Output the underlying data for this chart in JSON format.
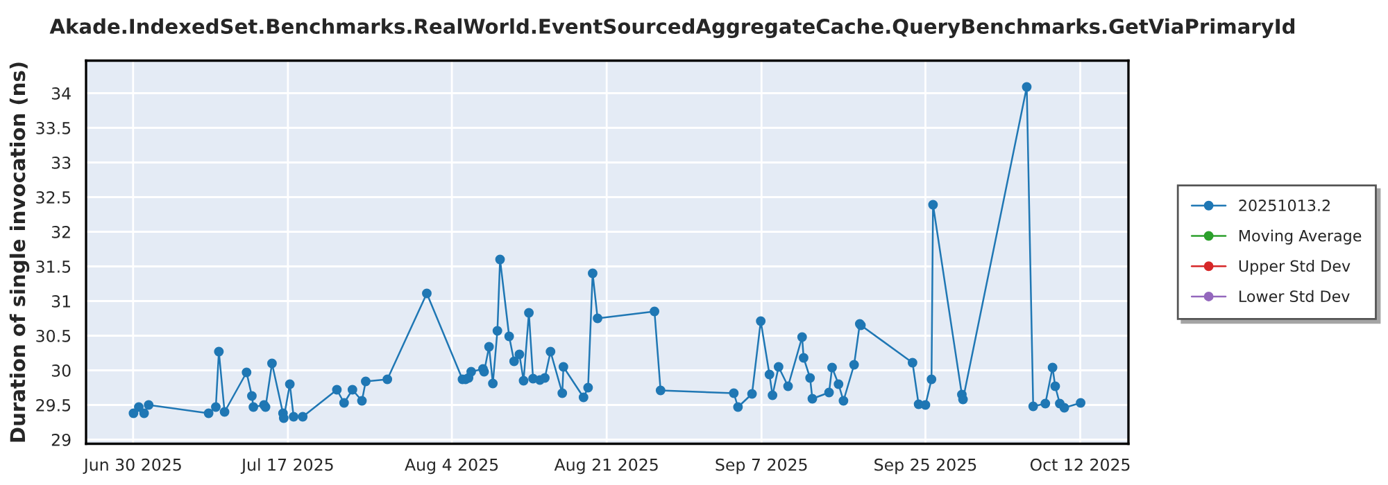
{
  "chart_data": {
    "type": "line",
    "title": "Akade.IndexedSet.Benchmarks.RealWorld.EventSourcedAggregateCache.QueryBenchmarks.GetViaPrimaryId",
    "ylabel": "Duration of single invocation (ns)",
    "x": [
      "2025-06-30T01:00",
      "2025-06-30T15:00",
      "2025-07-01T05:00",
      "2025-07-01T17:00",
      "2025-07-08T07:00",
      "2025-07-09T02:00",
      "2025-07-09T10:00",
      "2025-07-10T01:00",
      "2025-07-12T11:00",
      "2025-07-13T01:00",
      "2025-07-13T05:00",
      "2025-07-14T09:00",
      "2025-07-14T13:00",
      "2025-07-15T06:00",
      "2025-07-16T11:00",
      "2025-07-16T13:00",
      "2025-07-17T05:00",
      "2025-07-17T15:00",
      "2025-07-18T15:00",
      "2025-07-22T09:00",
      "2025-07-23T04:00",
      "2025-07-24T02:00",
      "2025-07-25T03:00",
      "2025-07-25T13:00",
      "2025-07-27T22:00",
      "2025-08-01T06:00",
      "2025-08-05T04:00",
      "2025-08-05T12:00",
      "2025-08-05T20:00",
      "2025-08-06T03:00",
      "2025-08-07T10:00",
      "2025-08-07T13:00",
      "2025-08-08T02:00",
      "2025-08-08T12:00",
      "2025-08-09T00:00",
      "2025-08-09T07:00",
      "2025-08-10T07:00",
      "2025-08-10T20:00",
      "2025-08-11T10:00",
      "2025-08-11T21:00",
      "2025-08-12T11:00",
      "2025-08-12T22:00",
      "2025-08-13T16:00",
      "2025-08-14T05:00",
      "2025-08-14T20:00",
      "2025-08-16T03:00",
      "2025-08-16T06:00",
      "2025-08-18T11:00",
      "2025-08-18T23:00",
      "2025-08-19T11:00",
      "2025-08-20T00:00",
      "2025-08-26T06:00",
      "2025-08-26T22:00",
      "2025-09-03T23:00",
      "2025-09-04T10:00",
      "2025-09-05T23:00",
      "2025-09-06T22:00",
      "2025-09-07T21:00",
      "2025-09-08T05:00",
      "2025-09-08T21:00",
      "2025-09-09T22:00",
      "2025-09-11T11:00",
      "2025-09-11T15:00",
      "2025-09-12T08:00",
      "2025-09-12T14:00",
      "2025-09-14T10:00",
      "2025-09-14T18:00",
      "2025-09-15T11:00",
      "2025-09-16T00:00",
      "2025-09-17T04:00",
      "2025-09-17T19:00",
      "2025-09-17T22:00",
      "2025-09-23T14:00",
      "2025-09-24T06:00",
      "2025-09-25T00:00",
      "2025-09-25T16:00",
      "2025-09-25T20:00",
      "2025-09-29T00:00",
      "2025-09-29T03:00",
      "2025-10-06T03:00",
      "2025-10-06T20:00",
      "2025-10-08T04:00",
      "2025-10-08T23:00",
      "2025-10-09T06:00",
      "2025-10-09T18:00",
      "2025-10-10T06:00",
      "2025-10-12T01:00"
    ],
    "series": [
      {
        "name": "20251013.2",
        "color": "#1f77b4",
        "values": [
          29.38,
          29.47,
          29.38,
          29.5,
          29.38,
          29.47,
          30.27,
          29.4,
          29.97,
          29.63,
          29.47,
          29.5,
          29.47,
          30.1,
          29.38,
          29.31,
          29.8,
          29.33,
          29.33,
          29.72,
          29.53,
          29.72,
          29.56,
          29.84,
          29.87,
          31.11,
          29.87,
          29.87,
          29.89,
          29.98,
          30.02,
          29.98,
          30.34,
          29.81,
          30.57,
          31.6,
          30.49,
          30.13,
          30.23,
          29.85,
          30.83,
          29.88,
          29.86,
          29.89,
          30.27,
          29.67,
          30.05,
          29.61,
          29.75,
          31.4,
          30.75,
          30.85,
          29.71,
          29.67,
          29.47,
          29.66,
          30.71,
          29.94,
          29.64,
          30.05,
          29.77,
          30.48,
          30.18,
          29.89,
          29.59,
          29.68,
          30.04,
          29.8,
          29.56,
          30.08,
          30.67,
          30.65,
          30.11,
          29.51,
          29.5,
          29.87,
          32.39,
          29.65,
          29.58,
          34.09,
          29.48,
          29.52,
          30.04,
          29.77,
          29.52,
          29.46,
          29.53
        ]
      },
      {
        "name": "Moving Average",
        "color": "#2ca02c",
        "values": [
          null,
          null,
          null,
          null,
          null,
          null,
          null,
          null,
          null,
          null,
          null,
          null,
          null,
          null,
          null,
          null,
          null,
          null,
          null,
          null,
          null,
          null,
          null,
          null,
          null,
          null,
          null,
          null,
          null,
          null,
          null,
          null,
          null,
          null,
          null,
          null,
          null,
          null,
          null,
          null,
          null,
          null,
          null,
          null,
          null,
          null,
          null,
          null,
          null,
          null,
          null,
          null,
          null,
          null,
          null,
          null,
          null,
          null,
          null,
          null,
          null,
          null,
          null,
          null,
          null,
          null,
          null,
          null,
          null,
          null,
          null,
          null,
          null,
          null,
          null,
          null,
          null,
          null,
          null,
          null,
          null,
          null,
          null,
          null,
          null,
          null,
          null
        ]
      },
      {
        "name": "Upper Std Dev",
        "color": "#d62728",
        "values": [
          null,
          null,
          null,
          null,
          null,
          null,
          null,
          null,
          null,
          null,
          null,
          null,
          null,
          null,
          null,
          null,
          null,
          null,
          null,
          null,
          null,
          null,
          null,
          null,
          null,
          null,
          null,
          null,
          null,
          null,
          null,
          null,
          null,
          null,
          null,
          null,
          null,
          null,
          null,
          null,
          null,
          null,
          null,
          null,
          null,
          null,
          null,
          null,
          null,
          null,
          null,
          null,
          null,
          null,
          null,
          null,
          null,
          null,
          null,
          null,
          null,
          null,
          null,
          null,
          null,
          null,
          null,
          null,
          null,
          null,
          null,
          null,
          null,
          null,
          null,
          null,
          null,
          null,
          null,
          null,
          null,
          null,
          null,
          null,
          null,
          null,
          null
        ]
      },
      {
        "name": "Lower Std Dev",
        "color": "#9467bd",
        "values": [
          null,
          null,
          null,
          null,
          null,
          null,
          null,
          null,
          null,
          null,
          null,
          null,
          null,
          null,
          null,
          null,
          null,
          null,
          null,
          null,
          null,
          null,
          null,
          null,
          null,
          null,
          null,
          null,
          null,
          null,
          null,
          null,
          null,
          null,
          null,
          null,
          null,
          null,
          null,
          null,
          null,
          null,
          null,
          null,
          null,
          null,
          null,
          null,
          null,
          null,
          null,
          null,
          null,
          null,
          null,
          null,
          null,
          null,
          null,
          null,
          null,
          null,
          null,
          null,
          null,
          null,
          null,
          null,
          null,
          null,
          null,
          null,
          null,
          null,
          null,
          null,
          null,
          null,
          null,
          null,
          null,
          null,
          null,
          null,
          null,
          null,
          null
        ]
      }
    ],
    "xlim": [
      "2025-06-24T20:00",
      "2025-10-17T07:00"
    ],
    "xticks": [
      {
        "value": "2025-06-30",
        "label": "Jun 30 2025"
      },
      {
        "value": "2025-07-17",
        "label": "Jul 17 2025"
      },
      {
        "value": "2025-08-04",
        "label": "Aug 4 2025"
      },
      {
        "value": "2025-08-21",
        "label": "Aug 21 2025"
      },
      {
        "value": "2025-09-07",
        "label": "Sep 7 2025"
      },
      {
        "value": "2025-09-25",
        "label": "Sep 25 2025"
      },
      {
        "value": "2025-10-12",
        "label": "Oct 12 2025"
      }
    ],
    "ylim": [
      28.94,
      34.47
    ],
    "yticks": [
      29,
      29.5,
      30,
      30.5,
      31,
      31.5,
      32,
      32.5,
      33,
      33.5,
      34
    ],
    "grid": true,
    "legend": "right",
    "marker": "circle",
    "line_style": "solid"
  }
}
